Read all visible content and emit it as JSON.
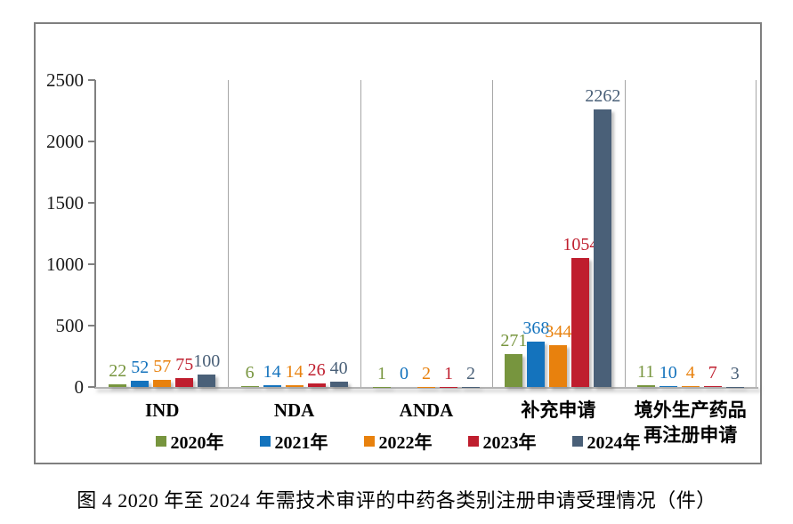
{
  "chart_data": {
    "type": "bar",
    "title": "",
    "categories": [
      "IND",
      "NDA",
      "ANDA",
      "补充申请",
      "境外生产药品\n再注册申请"
    ],
    "series": [
      {
        "name": "2020年",
        "color": "#77953e",
        "values": [
          22,
          6,
          1,
          271,
          11
        ]
      },
      {
        "name": "2021年",
        "color": "#1473bd",
        "values": [
          52,
          14,
          0,
          368,
          10
        ]
      },
      {
        "name": "2022年",
        "color": "#e8810d",
        "values": [
          57,
          14,
          2,
          344,
          4
        ]
      },
      {
        "name": "2023年",
        "color": "#bf1e2e",
        "values": [
          75,
          26,
          1,
          1054,
          7
        ]
      },
      {
        "name": "2024年",
        "color": "#4a6078",
        "values": [
          100,
          40,
          2,
          2262,
          3
        ]
      }
    ],
    "ylim": [
      0,
      2500
    ],
    "yticks": [
      0,
      500,
      1000,
      1500,
      2000,
      2500
    ],
    "grid": false,
    "panel_separators": true,
    "legend_position": "bottom",
    "data_labels": "outside-end",
    "xlabel": "",
    "ylabel": ""
  },
  "caption": "图 4  2020 年至 2024 年需技术审评的中药各类别注册申请受理情况（件）"
}
